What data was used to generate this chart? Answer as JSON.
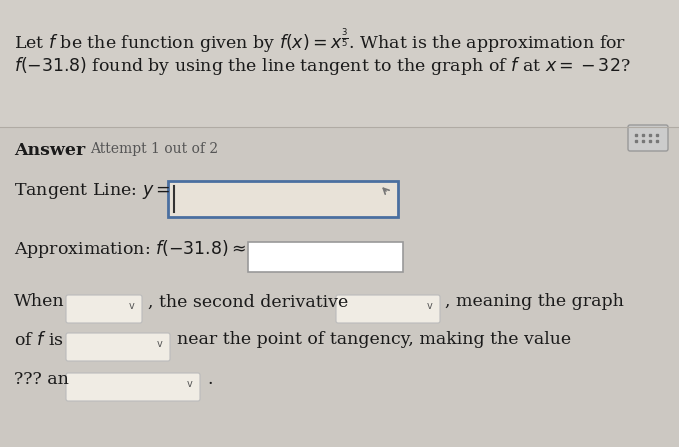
{
  "background_color": "#cdc9c3",
  "title_bg_color": "#cdc9c3",
  "answer_bg_color": "#c8c4bd",
  "title_line1": "Let $f$ be the function given by $f(x) = x^{\\frac{3}{5}}$. What is the approximation for",
  "title_line2": "$f(-31.8)$ found by using the line tangent to the graph of $f$ at $x = -32$?",
  "answer_label": "Answer",
  "attempt_label": "Attempt 1 out of 2",
  "tangent_label": "Tangent Line: $y =$",
  "approx_label": "Approximation: $f(-31.8) \\approx$",
  "when_text": "When",
  "sd_text": ", the second derivative",
  "meaning_text": ", meaning the graph",
  "of_f_text": "of $f$ is",
  "near_text": "near the point of tangency, making the value",
  "qqq_text": "??? an",
  "title_fontsize": 12.5,
  "body_fontsize": 12.5,
  "small_fontsize": 10.0,
  "tangent_box_color": "#e8e2d8",
  "tangent_box_border": "#4a6fa0",
  "approx_box_color": "#ffffff",
  "approx_box_border": "#999999",
  "dropdown_box_color": "#f0ece4",
  "dropdown_border": "#bbbbbb",
  "kb_box_color": "#cccccc",
  "kb_border": "#999999"
}
